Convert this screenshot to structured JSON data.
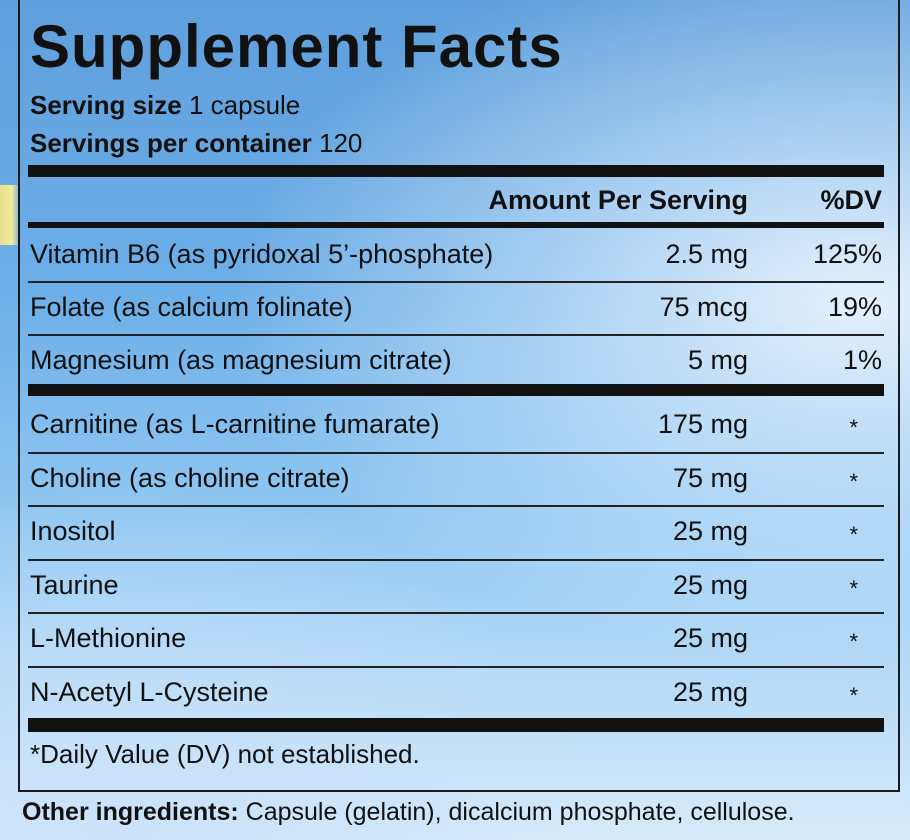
{
  "label": {
    "title": "Supplement Facts",
    "serving_size_label": "Serving size",
    "serving_size_value": "1 capsule",
    "servings_per_container_label": "Servings per container",
    "servings_per_container_value": "120",
    "header_amount": "Amount Per Serving",
    "header_dv": "%DV",
    "group1": [
      {
        "name": "Vitamin B6 (as pyridoxal 5’-phosphate)",
        "amount": "2.5 mg",
        "dv": "125%"
      },
      {
        "name": "Folate (as calcium folinate)",
        "amount": "75 mcg",
        "dv": "19%"
      },
      {
        "name": "Magnesium (as magnesium citrate)",
        "amount": "5 mg",
        "dv": "1%"
      }
    ],
    "group2": [
      {
        "name": "Carnitine (as L-carnitine fumarate)",
        "amount": "175 mg",
        "dv": "*"
      },
      {
        "name": "Choline (as choline citrate)",
        "amount": "75 mg",
        "dv": "*"
      },
      {
        "name": "Inositol",
        "amount": "25 mg",
        "dv": "*"
      },
      {
        "name": "Taurine",
        "amount": "25 mg",
        "dv": "*"
      },
      {
        "name": "L-Methionine",
        "amount": "25 mg",
        "dv": "*"
      },
      {
        "name": "N-Acetyl L-Cysteine",
        "amount": "25 mg",
        "dv": "*"
      }
    ],
    "footnote": "*Daily Value (DV) not established.",
    "other_label": "Other ingredients:",
    "other_value": "Capsule (gelatin), dicalcium phosphate, cellulose."
  }
}
